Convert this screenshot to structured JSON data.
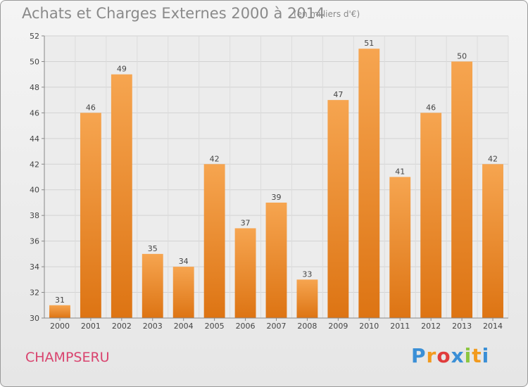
{
  "header": {
    "title": "Achats et Charges Externes 2000 à 2014",
    "subtitle": "(en milliers d'€)"
  },
  "footer": {
    "town": "CHAMPSERU",
    "logo_letters": [
      "P",
      "r",
      "o",
      "x",
      "i",
      "t",
      "i"
    ],
    "logo_colors": [
      "#3a8fd6",
      "#f29a1e",
      "#e03c3c",
      "#3a8fd6",
      "#8cc63f",
      "#f29a1e",
      "#3a8fd6"
    ]
  },
  "chart_data": {
    "type": "bar",
    "categories": [
      "2000",
      "2001",
      "2002",
      "2003",
      "2004",
      "2005",
      "2006",
      "2007",
      "2008",
      "2009",
      "2010",
      "2011",
      "2012",
      "2013",
      "2014"
    ],
    "values": [
      31,
      46,
      49,
      35,
      34,
      42,
      37,
      39,
      33,
      47,
      51,
      41,
      46,
      50,
      42
    ],
    "ylim": [
      30,
      52
    ],
    "yticks": [
      30,
      32,
      34,
      36,
      38,
      40,
      42,
      44,
      46,
      48,
      50,
      52
    ],
    "grid": true,
    "bar_color": "#f0892a"
  }
}
